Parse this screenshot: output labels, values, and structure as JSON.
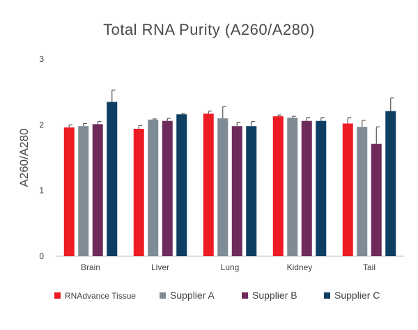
{
  "chart_data": {
    "type": "bar",
    "title": "Total RNA Purity (A260/A280)",
    "ylabel": "A260/A280",
    "xlabel": "",
    "ylim": [
      0,
      3
    ],
    "yticks": [
      0,
      1,
      2,
      3
    ],
    "grid": false,
    "legend_position": "bottom",
    "categories": [
      "Brain",
      "Liver",
      "Lung",
      "Kidney",
      "Tail"
    ],
    "series": [
      {
        "name": "RNAdvance Tissue",
        "color": "#ed1c24",
        "values": [
          1.96,
          1.94,
          2.17,
          2.13,
          2.02
        ],
        "errors": [
          0.04,
          0.05,
          0.04,
          0.02,
          0.09
        ]
      },
      {
        "name": "Supplier A",
        "color": "#7f8c95",
        "values": [
          1.98,
          2.08,
          2.1,
          2.11,
          1.97
        ],
        "errors": [
          0.04,
          0.01,
          0.18,
          0.02,
          0.1
        ]
      },
      {
        "name": "Supplier B",
        "color": "#6d2a5b",
        "values": [
          2.01,
          2.06,
          1.98,
          2.06,
          1.71
        ],
        "errors": [
          0.04,
          0.04,
          0.06,
          0.05,
          0.26
        ]
      },
      {
        "name": "Supplier C",
        "color": "#0f3e63",
        "values": [
          2.35,
          2.16,
          1.98,
          2.06,
          2.21
        ],
        "errors": [
          0.18,
          0.01,
          0.07,
          0.05,
          0.2
        ]
      }
    ]
  }
}
